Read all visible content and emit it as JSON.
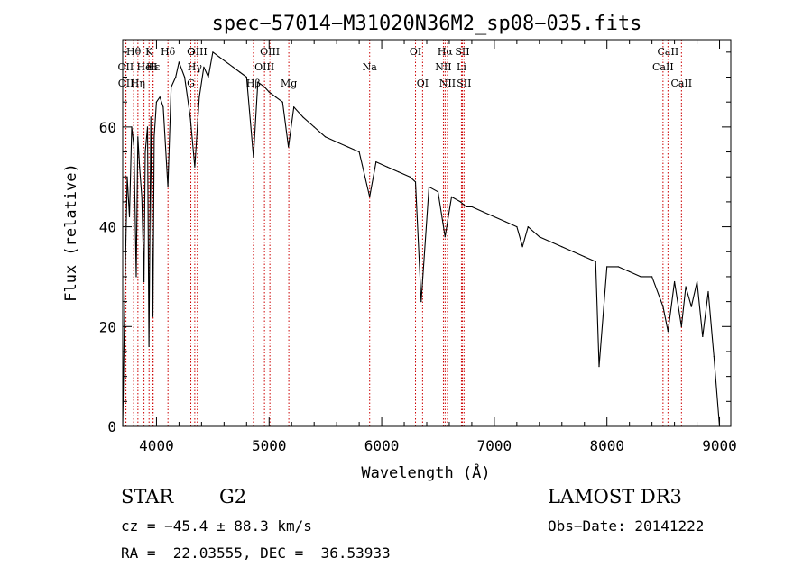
{
  "chart_data": {
    "type": "line",
    "title": "spec−57014−M31020N36M2_sp08−035.fits",
    "xlabel": "Wavelength (Å)",
    "ylabel": "Flux (relative)",
    "xlim": [
      3700,
      9100
    ],
    "ylim": [
      0,
      77.5
    ],
    "x_ticks": [
      4000,
      5000,
      6000,
      7000,
      8000,
      9000
    ],
    "x_tick_labels": [
      "4000",
      "5000",
      "6000",
      "7000",
      "8000",
      "9000"
    ],
    "y_ticks": [
      0,
      20,
      40,
      60
    ],
    "y_tick_labels": [
      "0",
      "20",
      "40",
      "60"
    ],
    "series": [
      {
        "name": "flux",
        "x": [
          3700,
          3720,
          3740,
          3760,
          3780,
          3800,
          3820,
          3835,
          3850,
          3870,
          3889,
          3900,
          3920,
          3933,
          3950,
          3968,
          3980,
          4000,
          4030,
          4060,
          4101,
          4130,
          4170,
          4200,
          4250,
          4300,
          4340,
          4380,
          4420,
          4460,
          4500,
          4560,
          4620,
          4680,
          4740,
          4800,
          4861,
          4900,
          4960,
          5000,
          5060,
          5120,
          5172,
          5220,
          5300,
          5400,
          5500,
          5600,
          5700,
          5800,
          5893,
          5950,
          6050,
          6150,
          6250,
          6300,
          6350,
          6420,
          6500,
          6563,
          6620,
          6700,
          6750,
          6800,
          6900,
          7000,
          7100,
          7200,
          7250,
          7300,
          7400,
          7500,
          7600,
          7700,
          7800,
          7900,
          7930,
          8000,
          8100,
          8200,
          8300,
          8400,
          8498,
          8542,
          8600,
          8662,
          8700,
          8750,
          8800,
          8850,
          8900,
          8950,
          9000
        ],
        "values": [
          0,
          28,
          50,
          42,
          60,
          56,
          30,
          58,
          52,
          46,
          29,
          55,
          60,
          16,
          62,
          22,
          58,
          65,
          66,
          64,
          48,
          68,
          70,
          73,
          70,
          62,
          52,
          66,
          72,
          70,
          75,
          74,
          73,
          72,
          71,
          70,
          54,
          69,
          68,
          67,
          66,
          65,
          56,
          64,
          62,
          60,
          58,
          57,
          56,
          55,
          46,
          53,
          52,
          51,
          50,
          49,
          25,
          48,
          47,
          38,
          46,
          45,
          44,
          44,
          43,
          42,
          41,
          40,
          36,
          40,
          38,
          37,
          36,
          35,
          34,
          33,
          12,
          32,
          32,
          31,
          30,
          30,
          24,
          19,
          29,
          20,
          28,
          24,
          29,
          18,
          27,
          14,
          0
        ]
      }
    ],
    "line_markers": [
      {
        "label": "Hθ",
        "x": 3797,
        "row": 1
      },
      {
        "label": "OII",
        "x": 3727,
        "row": 2
      },
      {
        "label": "OII",
        "x": 3729,
        "row": 3
      },
      {
        "label": "He",
        "x": 3889,
        "row": 2
      },
      {
        "label": "K",
        "x": 3934,
        "row": 1
      },
      {
        "label": "H",
        "x": 3969,
        "row": 2
      },
      {
        "label": "Hη",
        "x": 3835,
        "row": 3
      },
      {
        "label": "Hδ",
        "x": 4102,
        "row": 1
      },
      {
        "label": "Hε",
        "x": 3970,
        "row": 2
      },
      {
        "label": "G",
        "x": 4305,
        "row": 1
      },
      {
        "label": "OIII",
        "x": 4363,
        "row": 1
      },
      {
        "label": "Hγ",
        "x": 4340,
        "row": 2
      },
      {
        "label": "G",
        "x": 4305,
        "row": 3
      },
      {
        "label": "OIII",
        "x": 5007,
        "row": 1
      },
      {
        "label": "OIII",
        "x": 4959,
        "row": 2
      },
      {
        "label": "Hβ",
        "x": 4861,
        "row": 3
      },
      {
        "label": "Mg",
        "x": 5175,
        "row": 3
      },
      {
        "label": "Na",
        "x": 5893,
        "row": 2
      },
      {
        "label": "OI",
        "x": 6300,
        "row": 1
      },
      {
        "label": "OI",
        "x": 6363,
        "row": 3
      },
      {
        "label": "Hα",
        "x": 6563,
        "row": 1
      },
      {
        "label": "SII",
        "x": 6716,
        "row": 1
      },
      {
        "label": "NII",
        "x": 6548,
        "row": 2
      },
      {
        "label": "Li",
        "x": 6708,
        "row": 2
      },
      {
        "label": "NII",
        "x": 6584,
        "row": 3
      },
      {
        "label": "SII",
        "x": 6731,
        "row": 3
      },
      {
        "label": "CaII",
        "x": 8542,
        "row": 1
      },
      {
        "label": "CaII",
        "x": 8498,
        "row": 2
      },
      {
        "label": "CaII",
        "x": 8662,
        "row": 3
      }
    ]
  },
  "info": {
    "object_class": "STAR",
    "subclass": "G2",
    "survey": "LAMOST DR3",
    "cz": "cz = −45.4 ± 88.3 km/s",
    "obs_date": "Obs−Date: 20141222",
    "coords": "RA =  22.03555, DEC =  36.53933"
  }
}
